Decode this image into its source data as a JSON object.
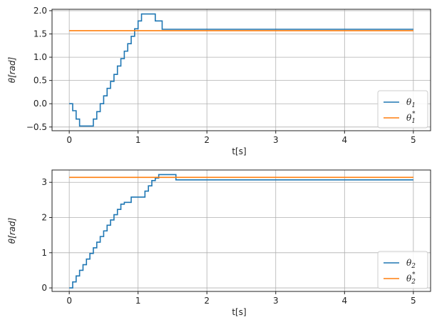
{
  "chart_data": [
    {
      "type": "line",
      "xlabel": "t[s]",
      "ylabel": "θ[rad]",
      "xlim": [
        -0.25,
        5.25
      ],
      "ylim": [
        -0.58,
        2.03
      ],
      "xticks": [
        0,
        1,
        2,
        3,
        4,
        5
      ],
      "xtick_labels": [
        "0",
        "1",
        "2",
        "3",
        "4",
        "5"
      ],
      "yticks": [
        -0.5,
        0.0,
        0.5,
        1.0,
        1.5,
        2.0
      ],
      "ytick_labels": [
        "−0.5",
        "0.0",
        "0.5",
        "1.0",
        "1.5",
        "2.0"
      ],
      "grid": true,
      "legend_position": "lower-right",
      "series": [
        {
          "name": "θ₁",
          "color": "#1f77b4",
          "step": true,
          "x": [
            0,
            0.05,
            0.1,
            0.15,
            0.2,
            0.25,
            0.3,
            0.35,
            0.4,
            0.45,
            0.5,
            0.55,
            0.6,
            0.65,
            0.7,
            0.75,
            0.8,
            0.85,
            0.9,
            0.95,
            1.0,
            1.05,
            1.1,
            1.15,
            1.2,
            1.25,
            1.3,
            1.35,
            5.0
          ],
          "y": [
            0,
            -0.15,
            -0.33,
            -0.48,
            -0.48,
            -0.48,
            -0.48,
            -0.33,
            -0.17,
            0.0,
            0.17,
            0.33,
            0.48,
            0.63,
            0.81,
            0.97,
            1.13,
            1.29,
            1.45,
            1.61,
            1.78,
            1.93,
            1.93,
            1.93,
            1.93,
            1.78,
            1.78,
            1.6,
            1.6
          ]
        },
        {
          "name": "θ₁*",
          "color": "#ff7f0e",
          "step": false,
          "x": [
            0,
            5
          ],
          "y": [
            1.5708,
            1.5708
          ]
        }
      ],
      "legend_labels": [
        {
          "base": "θ",
          "sub": "1",
          "sup": ""
        },
        {
          "base": "θ",
          "sub": "1",
          "sup": "*"
        }
      ]
    },
    {
      "type": "line",
      "xlabel": "t[s]",
      "ylabel": "θ[rad]",
      "xlim": [
        -0.25,
        5.25
      ],
      "ylim": [
        -0.1,
        3.35
      ],
      "xticks": [
        0,
        1,
        2,
        3,
        4,
        5
      ],
      "xtick_labels": [
        "0",
        "1",
        "2",
        "3",
        "4",
        "5"
      ],
      "yticks": [
        0,
        1,
        2,
        3
      ],
      "ytick_labels": [
        "0",
        "1",
        "2",
        "3"
      ],
      "grid": true,
      "legend_position": "lower-right",
      "series": [
        {
          "name": "θ₂",
          "color": "#1f77b4",
          "step": true,
          "x": [
            0,
            0.05,
            0.1,
            0.15,
            0.2,
            0.25,
            0.3,
            0.35,
            0.4,
            0.45,
            0.5,
            0.55,
            0.6,
            0.65,
            0.7,
            0.75,
            0.8,
            0.9,
            1.0,
            1.1,
            1.15,
            1.2,
            1.25,
            1.3,
            1.55,
            5.0
          ],
          "y": [
            0,
            0.17,
            0.34,
            0.5,
            0.66,
            0.82,
            0.98,
            1.14,
            1.3,
            1.46,
            1.62,
            1.78,
            1.93,
            2.08,
            2.23,
            2.38,
            2.43,
            2.58,
            2.58,
            2.75,
            2.9,
            3.05,
            3.12,
            3.22,
            3.07,
            3.07
          ]
        },
        {
          "name": "θ₂*",
          "color": "#ff7f0e",
          "step": false,
          "x": [
            0,
            5
          ],
          "y": [
            3.1416,
            3.1416
          ]
        }
      ],
      "legend_labels": [
        {
          "base": "θ",
          "sub": "2",
          "sup": ""
        },
        {
          "base": "θ",
          "sub": "2",
          "sup": "*"
        }
      ]
    }
  ]
}
